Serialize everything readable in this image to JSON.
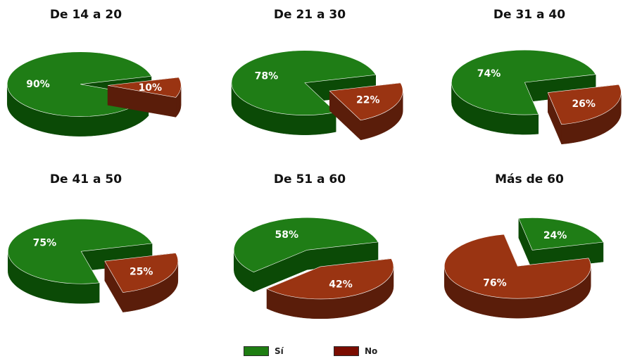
{
  "chart_data": [
    {
      "type": "pie",
      "title": "De 14 a 20",
      "slices": [
        {
          "label": "Sí",
          "value": 90
        },
        {
          "label": "No",
          "value": 10
        }
      ]
    },
    {
      "type": "pie",
      "title": "De 21 a 30",
      "slices": [
        {
          "label": "Sí",
          "value": 78
        },
        {
          "label": "No",
          "value": 22
        }
      ]
    },
    {
      "type": "pie",
      "title": "De 31 a 40",
      "slices": [
        {
          "label": "Sí",
          "value": 74
        },
        {
          "label": "No",
          "value": 26
        }
      ]
    },
    {
      "type": "pie",
      "title": "De 41 a 50",
      "slices": [
        {
          "label": "Sí",
          "value": 75
        },
        {
          "label": "No",
          "value": 25
        }
      ]
    },
    {
      "type": "pie",
      "title": "De 51 a 60",
      "slices": [
        {
          "label": "Sí",
          "value": 58
        },
        {
          "label": "No",
          "value": 42
        }
      ]
    },
    {
      "type": "pie",
      "title": "Más de 60",
      "slices": [
        {
          "label": "Sí",
          "value": 24
        },
        {
          "label": "No",
          "value": 76
        }
      ]
    }
  ],
  "legend": [
    {
      "label": "Sí",
      "color": "#1e7d12"
    },
    {
      "label": "No",
      "color": "#7a0c00"
    }
  ],
  "colors": {
    "si_top": "#1f7d16",
    "si_side": "#0b4a06",
    "no_top": "#9a3412",
    "no_side": "#5a1d0a",
    "label_text": "#ffffff",
    "title_text": "#111111"
  }
}
